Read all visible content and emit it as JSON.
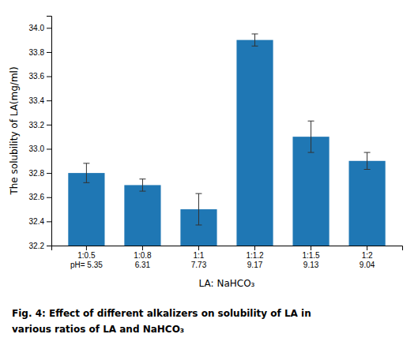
{
  "chart_data": {
    "type": "bar",
    "categories": [
      "1:0.5\npH= 5.35",
      "1:0.8\n6.31",
      "1:1\n7.73",
      "1:1.2\n9.17",
      "1:1.5\n9.13",
      "1:2\n9.04"
    ],
    "values": [
      32.8,
      32.7,
      32.5,
      33.9,
      33.1,
      32.9
    ],
    "errors": [
      0.08,
      0.05,
      0.13,
      0.05,
      0.13,
      0.07
    ],
    "xlabel": "LA: NaHCO₃",
    "ylabel": "The solubility of LA(mg/ml)",
    "ylim": [
      32.2,
      34.1
    ],
    "yticks": [
      32.2,
      32.4,
      32.6,
      32.8,
      {
        "value": 33.0,
        "label": "33.0"
      },
      33.2,
      33.4,
      33.6,
      33.8,
      {
        "value": 34.0,
        "label": "34.0"
      }
    ],
    "caption": [
      "Fig. 4: Effect of different alkalizers on solubility of LA in",
      "various ratios of LA and NaHCO₃"
    ],
    "grid": false
  }
}
